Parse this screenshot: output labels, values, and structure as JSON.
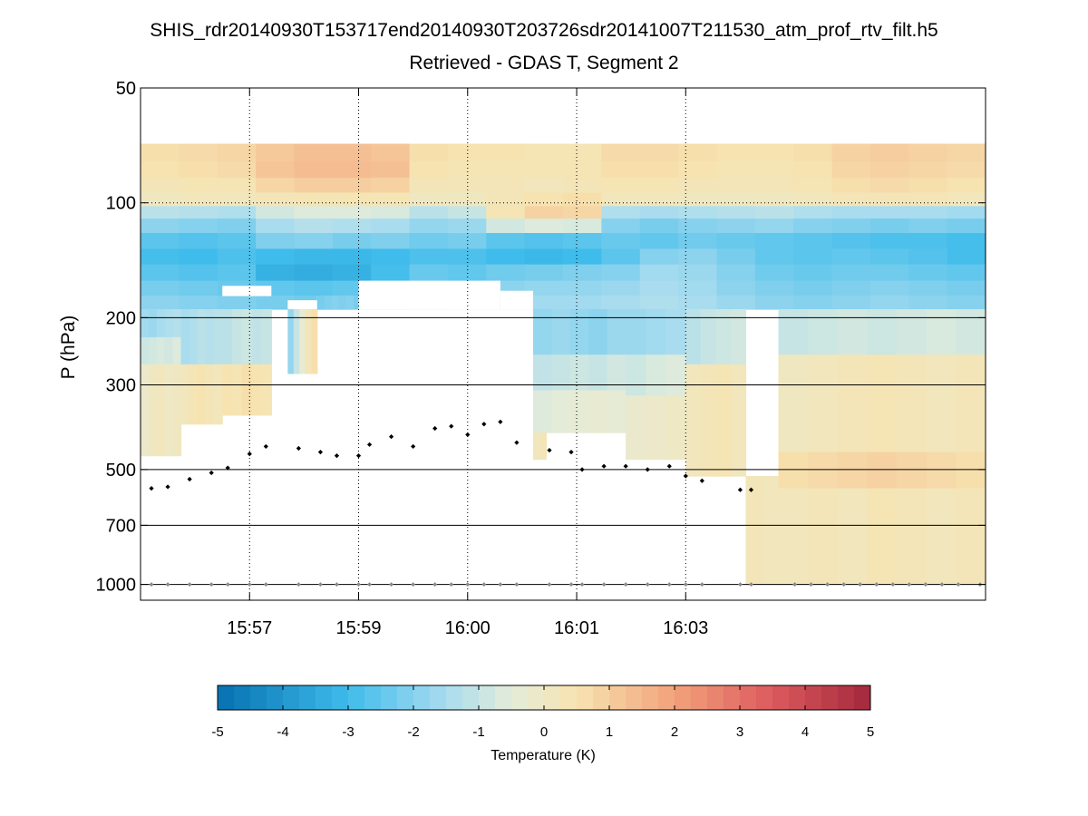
{
  "chart_data": {
    "type": "heatmap",
    "title": "SHIS_rdr20140930T153717end20140930T203726sdr20141007T211530_atm_prof_rtv_filt.h5",
    "subtitle": "Retrieved - GDAS T, Segment 2",
    "ylabel": "P (hPa)",
    "y_scale": "log",
    "y_reversed": true,
    "ylim": [
      50,
      1100
    ],
    "y_ticks": [
      50,
      100,
      200,
      300,
      500,
      700,
      1000
    ],
    "y_gridlines": [
      200,
      300,
      500,
      700,
      1000
    ],
    "xlim": [
      0,
      7.75
    ],
    "x_ticks": [
      {
        "value": 1,
        "label": "15:57"
      },
      {
        "value": 2,
        "label": "15:59"
      },
      {
        "value": 3,
        "label": "16:00"
      },
      {
        "value": 4,
        "label": "16:01"
      },
      {
        "value": 5,
        "label": "16:03"
      }
    ],
    "field_top_hpa": 70,
    "upper_layers": [
      {
        "p_top": 70,
        "p_bot": 78,
        "values": [
          0.6,
          0.7,
          0.8,
          1.1,
          1.3,
          1.3,
          1.2,
          0.6,
          0.5,
          0.5,
          0.4,
          0.4,
          0.7,
          0.7,
          0.6,
          0.5,
          0.5,
          0.6,
          0.9,
          1.0,
          0.9,
          0.8
        ]
      },
      {
        "p_top": 78,
        "p_bot": 86,
        "values": [
          0.5,
          0.6,
          0.7,
          1.2,
          1.4,
          1.4,
          1.3,
          0.5,
          0.4,
          0.4,
          0.4,
          0.4,
          0.6,
          0.6,
          0.5,
          0.4,
          0.4,
          0.5,
          0.8,
          0.9,
          0.8,
          0.7
        ]
      },
      {
        "p_top": 86,
        "p_bot": 94,
        "values": [
          0.3,
          0.4,
          0.4,
          0.8,
          1.0,
          1.0,
          0.9,
          0.3,
          0.3,
          0.3,
          0.2,
          0.3,
          0.4,
          0.4,
          0.3,
          0.3,
          0.3,
          0.4,
          0.6,
          0.7,
          0.6,
          0.5
        ]
      },
      {
        "p_top": 94,
        "p_bot": 102,
        "values": [
          0.1,
          0.2,
          0.2,
          0.3,
          0.4,
          0.4,
          0.4,
          0.1,
          0.1,
          0.3,
          0.5,
          0.6,
          0.2,
          0.2,
          0.1,
          0.1,
          0.1,
          0.2,
          0.3,
          0.3,
          0.3,
          0.2
        ]
      },
      {
        "p_top": 102,
        "p_bot": 110,
        "values": [
          -1.2,
          -1.3,
          -1.4,
          -0.8,
          -0.6,
          -0.6,
          -0.7,
          -1.2,
          -1.0,
          0.4,
          0.9,
          0.8,
          -1.4,
          -1.5,
          -1.4,
          -1.3,
          -1.2,
          -1.4,
          -1.5,
          -1.5,
          -1.5,
          -1.6
        ]
      },
      {
        "p_top": 110,
        "p_bot": 120,
        "values": [
          -1.9,
          -2.0,
          -2.1,
          -1.5,
          -1.3,
          -1.4,
          -1.5,
          -1.8,
          -1.7,
          -0.8,
          -0.6,
          -0.7,
          -2.0,
          -2.2,
          -2.0,
          -1.9,
          -1.8,
          -2.0,
          -2.1,
          -2.2,
          -2.1,
          -2.2
        ]
      },
      {
        "p_top": 120,
        "p_bot": 132,
        "values": [
          -2.6,
          -2.7,
          -2.6,
          -2.1,
          -2.0,
          -2.2,
          -2.1,
          -2.3,
          -2.2,
          -2.6,
          -2.7,
          -2.6,
          -2.4,
          -2.5,
          -2.3,
          -2.4,
          -2.5,
          -2.6,
          -2.7,
          -2.8,
          -2.8,
          -2.9
        ]
      },
      {
        "p_top": 132,
        "p_bot": 145,
        "values": [
          -2.9,
          -3.0,
          -2.8,
          -3.0,
          -3.1,
          -3.1,
          -3.0,
          -2.8,
          -2.8,
          -3.0,
          -3.1,
          -3.0,
          -2.6,
          -2.0,
          -1.9,
          -2.2,
          -2.5,
          -2.6,
          -2.5,
          -2.6,
          -2.7,
          -2.9
        ]
      },
      {
        "p_top": 145,
        "p_bot": 160,
        "values": [
          -2.6,
          -2.7,
          -2.6,
          -3.3,
          -3.4,
          -3.3,
          -2.9,
          -2.4,
          -2.5,
          -2.3,
          -2.2,
          -2.1,
          -2.0,
          -1.6,
          -1.7,
          -2.0,
          -2.3,
          -2.4,
          -2.3,
          -2.3,
          -2.4,
          -2.5
        ]
      },
      {
        "p_top": 160,
        "p_bot": 175,
        "values": [
          -2.2,
          -2.3,
          -2.4,
          -2.5,
          -2.6,
          -2.5,
          -2.5,
          -2.1,
          -2.0,
          -1.9,
          -1.8,
          -1.8,
          -1.7,
          -1.5,
          -1.6,
          -1.9,
          -2.1,
          -2.2,
          -2.1,
          -2.0,
          -2.1,
          -2.2
        ]
      },
      {
        "p_top": 175,
        "p_bot": 190,
        "values": [
          -1.9,
          -2.0,
          -2.1,
          -2.2,
          -2.3,
          -2.2,
          -2.2,
          -1.9,
          -1.8,
          -1.7,
          -1.6,
          -1.6,
          -1.5,
          -1.4,
          -1.5,
          -1.7,
          -1.9,
          -2.0,
          -1.9,
          -1.8,
          -1.9,
          -2.0
        ]
      }
    ],
    "upper_masks": [
      {
        "t_start": 0.75,
        "t_end": 1.2,
        "p_top": 165,
        "p_bot": 175
      },
      {
        "t_start": 1.35,
        "t_end": 1.62,
        "p_top": 180,
        "p_bot": 190
      },
      {
        "t_start": 1.62,
        "t_end": 1.95,
        "p_top": 175,
        "p_bot": 190
      },
      {
        "t_start": 2.0,
        "t_end": 3.3,
        "p_top": 160,
        "p_bot": 190
      },
      {
        "t_start": 3.3,
        "t_end": 3.6,
        "p_top": 170,
        "p_bot": 190
      }
    ],
    "lower_blocks": [
      {
        "t_start": 0,
        "t_end": 0.37,
        "p_top": 190,
        "p_bot": 225,
        "values": [
          -1.6,
          -1.7,
          -1.5,
          -1.4,
          -1.3
        ]
      },
      {
        "t_start": 0,
        "t_end": 0.37,
        "p_top": 225,
        "p_bot": 265,
        "values": [
          -0.9,
          -0.8,
          -0.7,
          -0.8,
          -0.6
        ]
      },
      {
        "t_start": 0,
        "t_end": 0.37,
        "p_top": 265,
        "p_bot": 460,
        "values": [
          -0.1,
          0.1,
          0.2,
          0.0,
          0.1
        ]
      },
      {
        "t_start": 0.37,
        "t_end": 0.75,
        "p_top": 190,
        "p_bot": 265,
        "values": [
          -1.5,
          -1.4,
          -1.2,
          -1.3,
          -1.2
        ]
      },
      {
        "t_start": 0.37,
        "t_end": 0.75,
        "p_top": 265,
        "p_bot": 380,
        "values": [
          0.2,
          0.4,
          0.5,
          0.3,
          0.2
        ]
      },
      {
        "t_start": 0.75,
        "t_end": 1.2,
        "p_top": 190,
        "p_bot": 265,
        "values": [
          -1.2,
          -1.0,
          -0.9,
          -1.1,
          -1.0
        ]
      },
      {
        "t_start": 0.75,
        "t_end": 1.2,
        "p_top": 265,
        "p_bot": 360,
        "values": [
          0.5,
          0.4,
          0.6,
          0.5,
          0.4
        ]
      },
      {
        "t_start": 1.35,
        "t_end": 1.62,
        "p_top": 190,
        "p_bot": 280,
        "values": [
          -1.8,
          -1.0,
          -0.3,
          0.3,
          0.6
        ]
      },
      {
        "t_start": 1.62,
        "t_end": 1.95,
        "p_top": 175,
        "p_bot": 190,
        "values": [
          -2.2,
          -2.1,
          -2.0,
          -2.1,
          -2.0
        ]
      },
      {
        "t_start": 3.6,
        "t_end": 4.45,
        "p_top": 190,
        "p_bot": 250,
        "values": [
          -1.8,
          -1.7,
          -1.8,
          -1.9,
          -1.7
        ]
      },
      {
        "t_start": 3.6,
        "t_end": 4.45,
        "p_top": 250,
        "p_bot": 310,
        "values": [
          -1.1,
          -1.0,
          -0.9,
          -1.0,
          -0.8
        ]
      },
      {
        "t_start": 3.6,
        "t_end": 4.45,
        "p_top": 310,
        "p_bot": 400,
        "values": [
          -0.6,
          -0.5,
          -0.4,
          -0.3,
          -0.4
        ]
      },
      {
        "t_start": 3.6,
        "t_end": 3.72,
        "p_top": 400,
        "p_bot": 470,
        "values": [
          0.2,
          0.3
        ]
      },
      {
        "t_start": 4.45,
        "t_end": 5.0,
        "p_top": 190,
        "p_bot": 250,
        "values": [
          -1.7,
          -1.6,
          -1.5
        ]
      },
      {
        "t_start": 4.45,
        "t_end": 5.0,
        "p_top": 250,
        "p_bot": 320,
        "values": [
          -0.9,
          -0.7,
          -0.6
        ]
      },
      {
        "t_start": 4.45,
        "t_end": 5.0,
        "p_top": 320,
        "p_bot": 470,
        "values": [
          -0.2,
          -0.1,
          0.0
        ]
      },
      {
        "t_start": 5.0,
        "t_end": 5.55,
        "p_top": 190,
        "p_bot": 265,
        "values": [
          -1.2,
          -1.0,
          -0.9,
          -0.8
        ]
      },
      {
        "t_start": 5.0,
        "t_end": 5.55,
        "p_top": 265,
        "p_bot": 520,
        "values": [
          0.2,
          0.3,
          0.4,
          0.2
        ]
      },
      {
        "t_start": 5.55,
        "t_end": 5.85,
        "p_top": 520,
        "p_bot": 1000,
        "values": [
          0.3,
          0.2
        ]
      },
      {
        "t_start": 5.85,
        "t_end": 7.75,
        "p_top": 190,
        "p_bot": 250,
        "values": [
          -1.0,
          -0.9,
          -0.8,
          -0.9,
          -0.8,
          -0.7,
          -0.8
        ]
      },
      {
        "t_start": 5.85,
        "t_end": 7.75,
        "p_top": 250,
        "p_bot": 450,
        "values": [
          0.1,
          0.2,
          0.3,
          0.4,
          0.3,
          0.2,
          0.3
        ]
      },
      {
        "t_start": 5.85,
        "t_end": 7.75,
        "p_top": 450,
        "p_bot": 560,
        "values": [
          0.6,
          0.7,
          0.8,
          0.9,
          0.8,
          0.7,
          0.6
        ]
      },
      {
        "t_start": 5.85,
        "t_end": 7.75,
        "p_top": 560,
        "p_bot": 1000,
        "values": [
          0.2,
          0.3,
          0.2,
          0.4,
          0.3,
          0.2,
          0.3
        ]
      }
    ],
    "markers_black": [
      {
        "t": 0.1,
        "p": 560
      },
      {
        "t": 0.25,
        "p": 555
      },
      {
        "t": 0.45,
        "p": 530
      },
      {
        "t": 0.65,
        "p": 510
      },
      {
        "t": 0.8,
        "p": 495
      },
      {
        "t": 1.0,
        "p": 455
      },
      {
        "t": 1.15,
        "p": 435
      },
      {
        "t": 1.45,
        "p": 440
      },
      {
        "t": 1.65,
        "p": 450
      },
      {
        "t": 1.8,
        "p": 460
      },
      {
        "t": 2.0,
        "p": 460
      },
      {
        "t": 2.1,
        "p": 430
      },
      {
        "t": 2.3,
        "p": 410
      },
      {
        "t": 2.5,
        "p": 435
      },
      {
        "t": 2.7,
        "p": 390
      },
      {
        "t": 2.85,
        "p": 385
      },
      {
        "t": 3.0,
        "p": 405
      },
      {
        "t": 3.15,
        "p": 380
      },
      {
        "t": 3.3,
        "p": 375
      },
      {
        "t": 3.45,
        "p": 425
      },
      {
        "t": 3.75,
        "p": 445
      },
      {
        "t": 3.95,
        "p": 450
      },
      {
        "t": 4.05,
        "p": 500
      },
      {
        "t": 4.25,
        "p": 490
      },
      {
        "t": 4.45,
        "p": 490
      },
      {
        "t": 4.65,
        "p": 500
      },
      {
        "t": 4.85,
        "p": 490
      },
      {
        "t": 5.0,
        "p": 520
      },
      {
        "t": 5.15,
        "p": 535
      },
      {
        "t": 5.5,
        "p": 565
      },
      {
        "t": 5.6,
        "p": 565
      }
    ],
    "markers_gray_p": 1000,
    "markers_gray_t": [
      0.1,
      0.25,
      0.45,
      0.65,
      0.8,
      1.0,
      1.15,
      1.45,
      1.65,
      1.8,
      2.0,
      2.1,
      2.3,
      2.5,
      2.7,
      2.85,
      3.0,
      3.15,
      3.3,
      3.45,
      3.75,
      3.95,
      4.05,
      4.25,
      4.45,
      4.65,
      4.85,
      5.0,
      5.15,
      5.5,
      5.6,
      6.0,
      6.15,
      6.3,
      6.45,
      6.6,
      6.75,
      6.9,
      7.05,
      7.2,
      7.35,
      7.5,
      7.7
    ],
    "colorbar": {
      "label": "Temperature (K)",
      "min": -5,
      "max": 5,
      "ticks": [
        "-5",
        "-4",
        "-3",
        "-2",
        "-1",
        "0",
        "1",
        "2",
        "3",
        "4",
        "5"
      ],
      "n_steps": 40,
      "colormap": [
        {
          "v": -5,
          "c": "#0570b0"
        },
        {
          "v": -3,
          "c": "#3fbceb"
        },
        {
          "v": -1.5,
          "c": "#a9dcef"
        },
        {
          "v": -0.5,
          "c": "#e4ecd9"
        },
        {
          "v": 0.5,
          "c": "#f7e3b0"
        },
        {
          "v": 2,
          "c": "#f2a27a"
        },
        {
          "v": 3.5,
          "c": "#dc5a5e"
        },
        {
          "v": 5,
          "c": "#a3283c"
        }
      ]
    }
  }
}
